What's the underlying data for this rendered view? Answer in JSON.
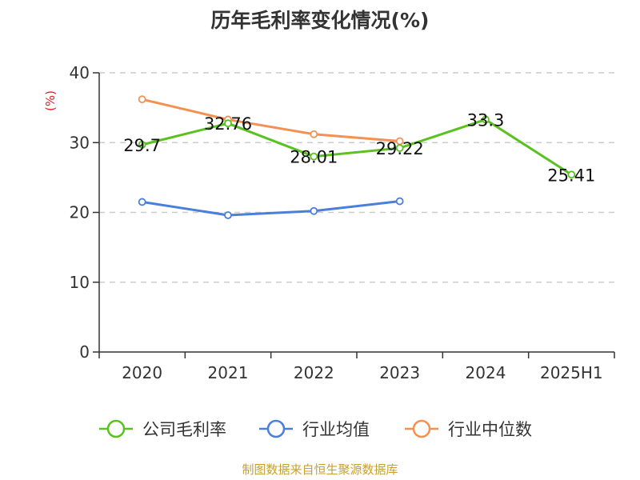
{
  "title": "历年毛利率变化情况(%)",
  "source": "制图数据来自恒生聚源数据库",
  "colors": {
    "axis": "#333333",
    "grid": "#cccccc",
    "unit": "#e02020",
    "source": "#c8a030"
  },
  "chart_data": {
    "type": "line",
    "title": "历年毛利率变化情况(%)",
    "xlabel": "",
    "ylabel": "(%)",
    "ylim": [
      0,
      40
    ],
    "yticks": [
      0,
      10,
      20,
      30,
      40
    ],
    "grid": true,
    "legend": "bottom",
    "categories": [
      "2020",
      "2021",
      "2022",
      "2023",
      "2024",
      "2025H1"
    ],
    "series": [
      {
        "name": "公司毛利率",
        "color": "#5ac21f",
        "values": [
          29.7,
          32.76,
          28.01,
          29.22,
          33.3,
          25.41
        ],
        "labels": [
          "29.7",
          "32.76",
          "28.01",
          "29.22",
          "33.3",
          "25.41"
        ],
        "show_labels": true
      },
      {
        "name": "行业均值",
        "color": "#4a80d9",
        "values": [
          21.5,
          19.6,
          20.2,
          21.6,
          null,
          null
        ],
        "show_labels": false
      },
      {
        "name": "行业中位数",
        "color": "#f39153",
        "values": [
          36.2,
          33.3,
          31.2,
          30.2,
          null,
          null
        ],
        "show_labels": false
      }
    ]
  }
}
